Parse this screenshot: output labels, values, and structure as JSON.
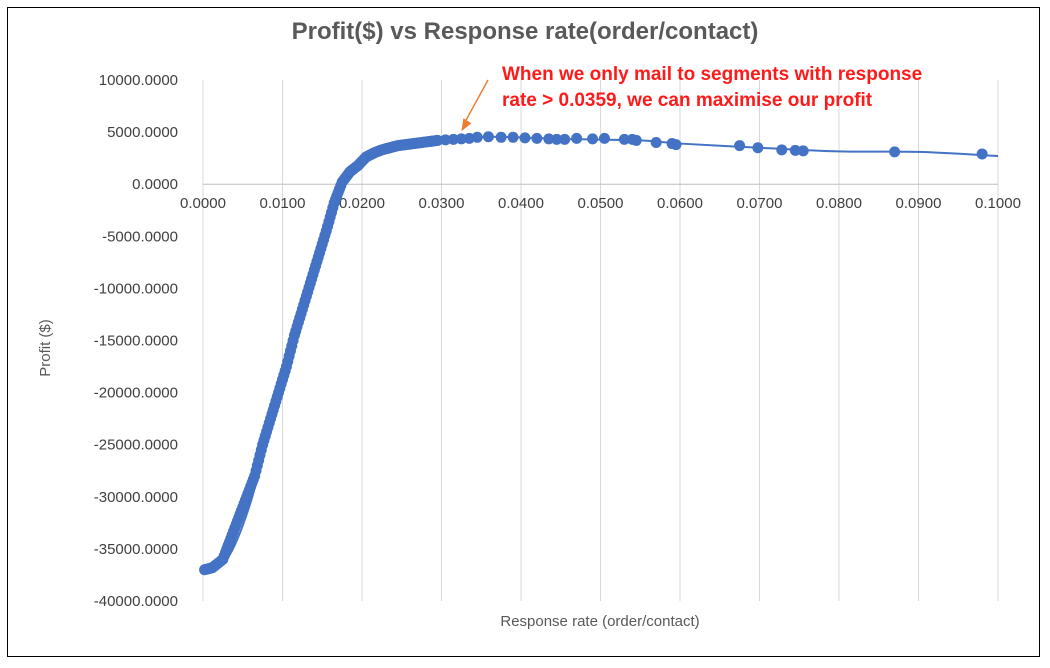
{
  "chart_data": {
    "type": "scatter",
    "title": "Profit($) vs Response rate(order/contact)",
    "xlabel": "Response rate (order/contact)",
    "ylabel": "Profit ($)",
    "xlim": [
      0,
      0.1
    ],
    "ylim": [
      -40000,
      10000
    ],
    "x_ticks": [
      "0.0000",
      "0.0100",
      "0.0200",
      "0.0300",
      "0.0400",
      "0.0500",
      "0.0600",
      "0.0700",
      "0.0800",
      "0.0900",
      "0.1000"
    ],
    "y_ticks": [
      "10000.0000",
      "5000.0000",
      "0.0000",
      "-5000.0000",
      "-10000.0000",
      "-15000.0000",
      "-20000.0000",
      "-25000.0000",
      "-30000.0000",
      "-35000.0000",
      "-40000.0000"
    ],
    "grid": "vertical",
    "marker_color": "#4472c4",
    "line_color": "#4472c4",
    "annotation": {
      "lines": [
        "When we only mail to segments with response",
        "rate > 0.0359, we can maximise our profit"
      ],
      "color": "#ff1a1a",
      "arrow_color": "#ed7d31",
      "arrow_target": [
        0.0325,
        4500
      ]
    },
    "points": [
      [
        0.0002,
        -37000
      ],
      [
        0.0012,
        -36800
      ],
      [
        0.0025,
        -36000
      ],
      [
        0.0035,
        -34000
      ],
      [
        0.0045,
        -32000
      ],
      [
        0.0055,
        -30000
      ],
      [
        0.0065,
        -28000
      ],
      [
        0.0075,
        -25000
      ],
      [
        0.0085,
        -22500
      ],
      [
        0.0095,
        -20000
      ],
      [
        0.0105,
        -17500
      ],
      [
        0.0115,
        -14500
      ],
      [
        0.0125,
        -12000
      ],
      [
        0.0135,
        -9500
      ],
      [
        0.0145,
        -7000
      ],
      [
        0.0155,
        -4500
      ],
      [
        0.0165,
        -1800
      ],
      [
        0.0175,
        200
      ],
      [
        0.0185,
        1200
      ],
      [
        0.0195,
        1800
      ],
      [
        0.0205,
        2600
      ],
      [
        0.0215,
        3000
      ],
      [
        0.0225,
        3300
      ],
      [
        0.0235,
        3500
      ],
      [
        0.0245,
        3700
      ],
      [
        0.0255,
        3800
      ],
      [
        0.0265,
        3900
      ],
      [
        0.0275,
        4000
      ],
      [
        0.0285,
        4100
      ],
      [
        0.0295,
        4200
      ],
      [
        0.0305,
        4250
      ],
      [
        0.0315,
        4300
      ],
      [
        0.0325,
        4350
      ],
      [
        0.0335,
        4400
      ],
      [
        0.0345,
        4500
      ],
      [
        0.0359,
        4550
      ],
      [
        0.0375,
        4500
      ],
      [
        0.039,
        4500
      ],
      [
        0.0405,
        4450
      ],
      [
        0.042,
        4400
      ],
      [
        0.0435,
        4350
      ],
      [
        0.0445,
        4300
      ],
      [
        0.0455,
        4300
      ],
      [
        0.047,
        4400
      ],
      [
        0.049,
        4350
      ],
      [
        0.0505,
        4400
      ],
      [
        0.053,
        4300
      ],
      [
        0.054,
        4300
      ],
      [
        0.0545,
        4200
      ],
      [
        0.057,
        4000
      ],
      [
        0.059,
        3900
      ],
      [
        0.0595,
        3800
      ],
      [
        0.0675,
        3700
      ],
      [
        0.0698,
        3500
      ],
      [
        0.0728,
        3300
      ],
      [
        0.0745,
        3250
      ],
      [
        0.0755,
        3200
      ],
      [
        0.087,
        3100
      ],
      [
        0.098,
        2900
      ]
    ],
    "trendline": [
      [
        0.0,
        -37000
      ],
      [
        0.003,
        -36000
      ],
      [
        0.006,
        -30500
      ],
      [
        0.009,
        -21500
      ],
      [
        0.012,
        -13500
      ],
      [
        0.015,
        -6000
      ],
      [
        0.0175,
        0
      ],
      [
        0.02,
        2400
      ],
      [
        0.024,
        3600
      ],
      [
        0.03,
        4200
      ],
      [
        0.036,
        4550
      ],
      [
        0.045,
        4350
      ],
      [
        0.055,
        4200
      ],
      [
        0.06,
        3900
      ],
      [
        0.07,
        3500
      ],
      [
        0.08,
        3150
      ],
      [
        0.09,
        3100
      ],
      [
        0.1,
        2700
      ]
    ]
  }
}
